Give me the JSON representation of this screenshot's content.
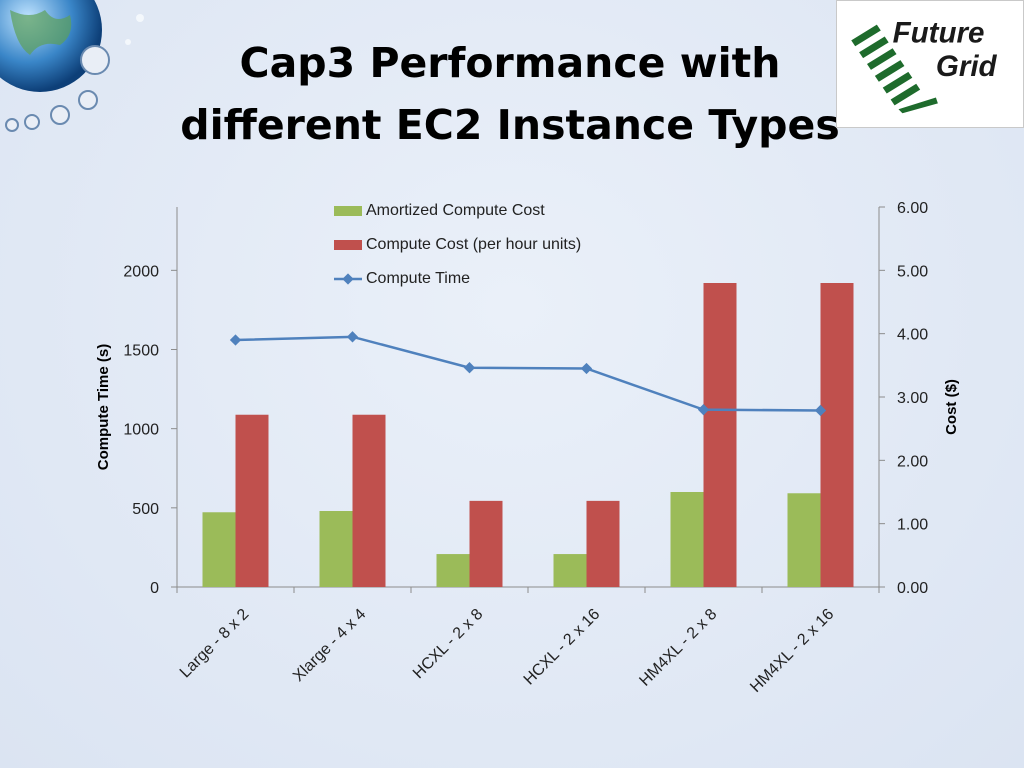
{
  "slide": {
    "title_line1": "Cap3 Performance with",
    "title_line2": "different EC2 Instance Types",
    "logo_text_line1": "Future",
    "logo_text_line2": "Grid"
  },
  "colors": {
    "amortized": "#9bbb59",
    "compute_cost": "#c0504d",
    "compute_time": "#4f81bd",
    "axis": "#8c8c8c"
  },
  "chart_data": {
    "type": "bar",
    "title": "",
    "categories": [
      "Large - 8 x 2",
      "Xlarge - 4 x 4",
      "HCXL - 2 x 8",
      "HCXL - 2 x 16",
      "HM4XL - 2 x 8",
      "HM4XL - 2 x 16"
    ],
    "ylabel_left": "Compute Time (s)",
    "ylabel_right": "Cost ($)",
    "ylim_left": [
      0,
      2400
    ],
    "ylim_right": [
      0,
      6
    ],
    "left_ticks": [
      "0",
      "500",
      "1000",
      "1500",
      "2000"
    ],
    "right_ticks": [
      "0.00",
      "1.00",
      "2.00",
      "3.00",
      "4.00",
      "5.00",
      "6.00"
    ],
    "legend_position": "top",
    "series": [
      {
        "name": "Amortized Compute Cost",
        "type": "bar",
        "axis": "right",
        "values": [
          1.18,
          1.2,
          0.52,
          0.52,
          1.5,
          1.48
        ]
      },
      {
        "name": "Compute Cost (per hour units)",
        "type": "bar",
        "axis": "right",
        "values": [
          2.72,
          2.72,
          1.36,
          1.36,
          4.8,
          4.8
        ]
      },
      {
        "name": "Compute Time",
        "type": "line",
        "axis": "left",
        "values": [
          1560,
          1580,
          1385,
          1380,
          1120,
          1115
        ]
      }
    ]
  }
}
